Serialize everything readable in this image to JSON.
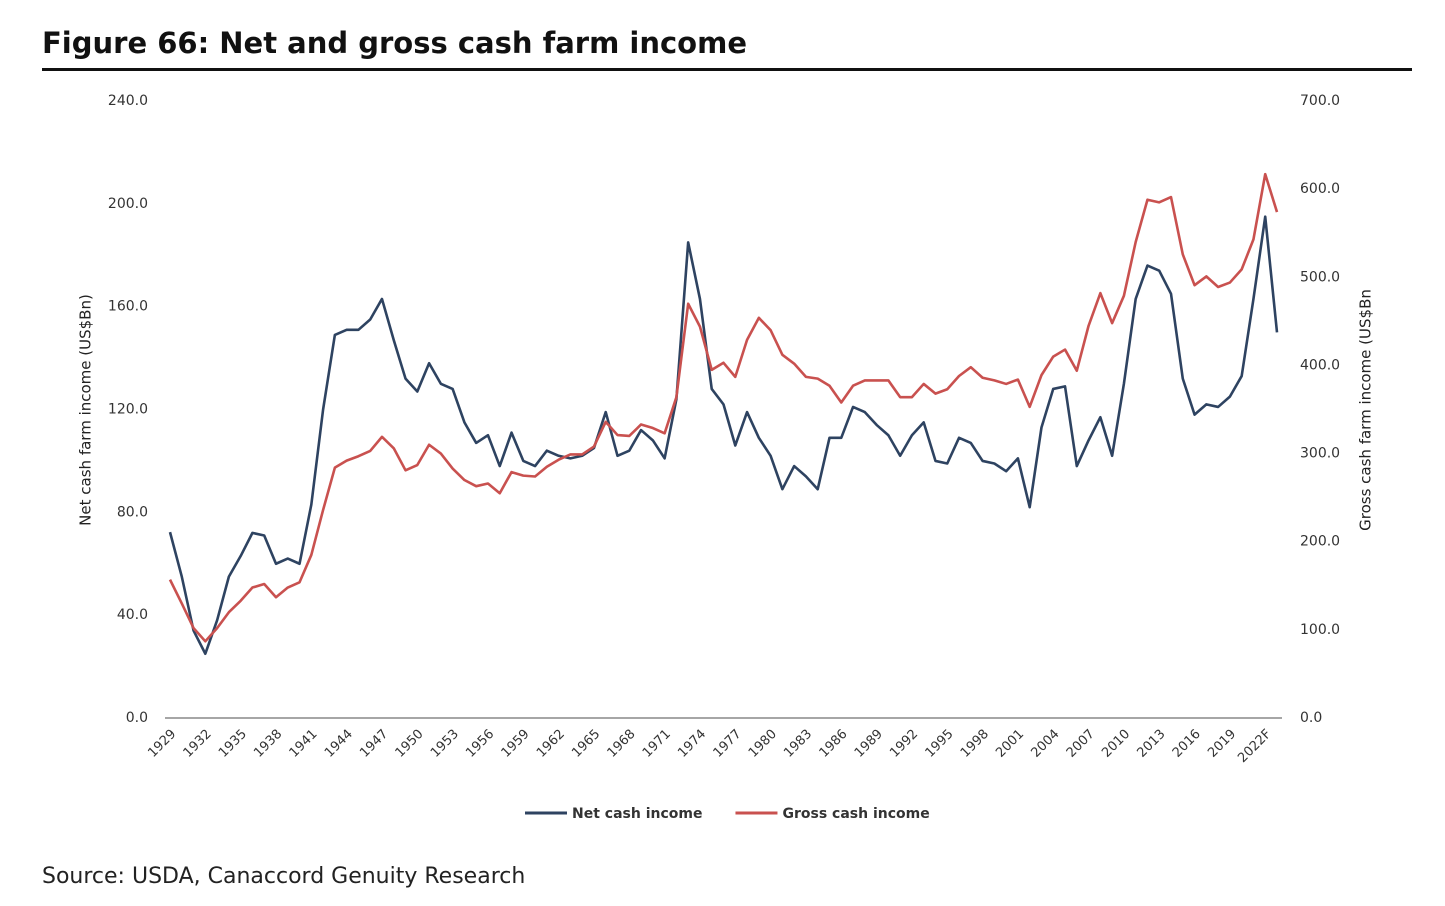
{
  "chart_data": {
    "type": "line",
    "title": "Figure 66: Net and gross cash farm income",
    "source": "Source: USDA, Canaccord Genuity Research",
    "ylabel": "Net cash farm income (US$Bn)",
    "y2label": "Gross cash farm income (US$Bn",
    "categories": [
      "1929",
      null,
      null,
      "1932",
      null,
      null,
      "1935",
      null,
      null,
      "1938",
      null,
      null,
      "1941",
      null,
      null,
      "1944",
      null,
      null,
      "1947",
      null,
      null,
      "1950",
      null,
      null,
      "1953",
      null,
      null,
      "1956",
      null,
      null,
      "1959",
      null,
      null,
      "1962",
      null,
      null,
      "1965",
      null,
      null,
      "1968",
      null,
      null,
      "1971",
      null,
      null,
      "1974",
      null,
      null,
      "1977",
      null,
      null,
      "1980",
      null,
      null,
      "1983",
      null,
      null,
      "1986",
      null,
      null,
      "1989",
      null,
      null,
      "1992",
      null,
      null,
      "1995",
      null,
      null,
      "1998",
      null,
      null,
      "2001",
      null,
      null,
      "2004",
      null,
      null,
      "2007",
      null,
      null,
      "2010",
      null,
      null,
      "2013",
      null,
      null,
      "2016",
      null,
      null,
      "2019",
      null,
      null,
      "2022F",
      null
    ],
    "series": [
      {
        "name": "Net cash income",
        "color": "#2e4361",
        "axis": "y",
        "values": [
          72.3,
          55,
          34,
          25,
          38,
          55,
          63,
          72,
          71,
          60,
          62,
          60,
          83,
          120,
          149,
          151,
          151,
          155,
          163,
          147,
          132,
          127,
          138,
          130,
          128,
          115,
          107,
          110,
          98,
          111,
          100,
          98,
          104,
          102,
          101,
          102,
          105,
          119,
          102,
          104,
          112,
          108,
          101,
          124,
          185,
          163,
          128,
          122,
          106,
          119,
          109,
          102,
          89,
          98,
          94,
          89,
          109,
          109,
          121,
          119,
          114,
          110,
          102,
          110,
          115,
          100,
          99,
          109,
          107,
          100,
          99,
          96,
          101,
          82,
          113,
          128,
          129,
          98,
          108,
          117,
          102,
          130,
          163,
          176,
          174,
          165,
          132,
          118,
          122,
          121,
          125,
          133,
          163,
          195,
          150
        ]
      },
      {
        "name": "Gross cash income",
        "color": "#c9514f",
        "axis": "y2",
        "values": [
          157,
          130,
          102,
          87,
          102,
          120,
          133,
          148,
          152,
          137,
          148,
          154,
          185,
          236,
          284,
          292,
          297,
          303,
          319,
          306,
          281,
          287,
          310,
          300,
          283,
          270,
          263,
          266,
          255,
          279,
          275,
          274,
          285,
          293,
          299,
          299,
          308,
          336,
          321,
          320,
          333,
          329,
          323,
          364,
          470,
          444,
          395,
          403,
          387,
          429,
          454,
          440,
          412,
          402,
          387,
          385,
          377,
          358,
          377,
          383,
          383,
          383,
          364,
          364,
          379,
          368,
          373,
          388,
          398,
          386,
          383,
          379,
          384,
          353,
          389,
          410,
          418,
          394,
          445,
          482,
          448,
          479,
          540,
          588,
          585,
          591,
          526,
          491,
          501,
          489,
          494,
          509,
          543,
          617,
          574
        ]
      }
    ],
    "ylim": [
      0,
      240
    ],
    "yticks": [
      {
        "value": 0,
        "label": "0.0"
      },
      {
        "value": 40,
        "label": "40.0"
      },
      {
        "value": 80,
        "label": "80.0"
      },
      {
        "value": 120,
        "label": "120.0"
      },
      {
        "value": 160,
        "label": "160.0"
      },
      {
        "value": 200,
        "label": "200.0"
      },
      {
        "value": 240,
        "label": "240.0"
      }
    ],
    "y2lim": [
      0,
      700
    ],
    "y2ticks": [
      {
        "value": 0,
        "label": "0.0"
      },
      {
        "value": 100,
        "label": "100.0"
      },
      {
        "value": 200,
        "label": "200.0"
      },
      {
        "value": 300,
        "label": "300.0"
      },
      {
        "value": 400,
        "label": "400.0"
      },
      {
        "value": 500,
        "label": "500.0"
      },
      {
        "value": 600,
        "label": "600.0"
      },
      {
        "value": 700,
        "label": "700.0"
      }
    ],
    "grid": false,
    "legend": "bottom"
  }
}
